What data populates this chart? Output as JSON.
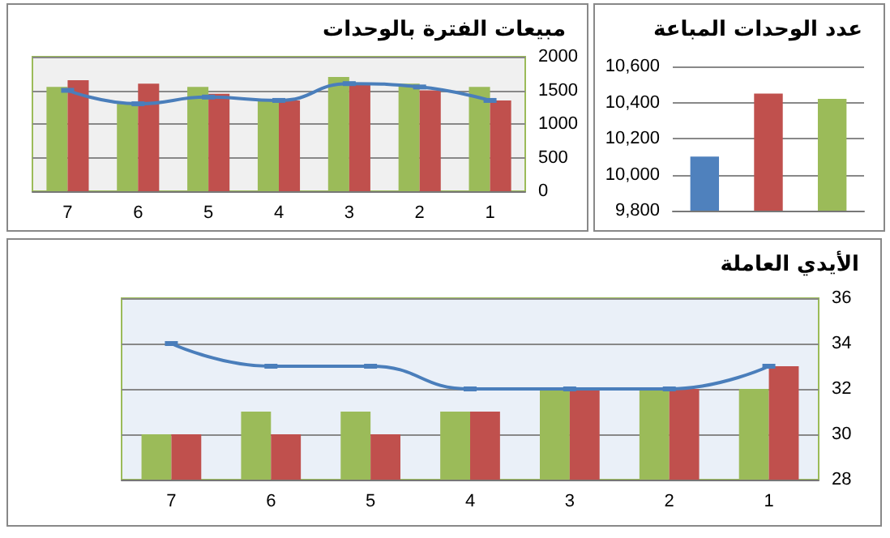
{
  "chart_data": [
    {
      "type": "bar",
      "title": "مبيعات الفترة بالوحدات",
      "categories": [
        "7",
        "6",
        "5",
        "4",
        "3",
        "2",
        "1"
      ],
      "series": [
        {
          "color": "#9bbb59",
          "values": [
            1550,
            1300,
            1550,
            1350,
            1700,
            1600,
            1550
          ]
        },
        {
          "color": "#c0504d",
          "values": [
            1650,
            1600,
            1450,
            1350,
            1600,
            1500,
            1350
          ]
        },
        {
          "type": "line",
          "color": "#4a7ebb",
          "values": [
            1500,
            1300,
            1400,
            1350,
            1600,
            1550,
            1350
          ]
        }
      ],
      "ylim": [
        0,
        2000
      ],
      "yticks": [
        0,
        500,
        1000,
        1500,
        2000
      ],
      "grid": "y",
      "marker": "square",
      "line_style": "solid"
    },
    {
      "type": "bar",
      "title": "عدد الوحدات المباعة",
      "categories": [
        null,
        null,
        null
      ],
      "values": [
        10100,
        10450,
        10420
      ],
      "colors": [
        "#4f81bd",
        "#c0504d",
        "#9bbb59"
      ],
      "ylim": [
        9800,
        10600
      ],
      "yticks": [
        {
          "value": 9800,
          "label": "9,800"
        },
        {
          "value": 10000,
          "label": "10,000"
        },
        {
          "value": 10200,
          "label": "10,200"
        },
        {
          "value": 10400,
          "label": "10,400"
        },
        {
          "value": 10600,
          "label": "10,600"
        }
      ],
      "grid": "y",
      "tick_labels": "y"
    },
    {
      "type": "bar",
      "title": "الأيدي العاملة",
      "categories": [
        "7",
        "6",
        "5",
        "4",
        "3",
        "2",
        "1"
      ],
      "series": [
        {
          "color": "#9bbb59",
          "values": [
            30,
            31,
            31,
            31,
            32,
            32,
            32
          ]
        },
        {
          "color": "#c0504d",
          "values": [
            30,
            30,
            30,
            31,
            32,
            32,
            33
          ]
        },
        {
          "type": "line",
          "color": "#4a7ebb",
          "values": [
            34,
            33,
            33,
            32,
            32,
            32,
            33
          ]
        }
      ],
      "ylim": [
        28,
        36
      ],
      "yticks": [
        28,
        30,
        32,
        34,
        36
      ],
      "grid": "y",
      "marker": "square",
      "line_style": "solid"
    }
  ]
}
